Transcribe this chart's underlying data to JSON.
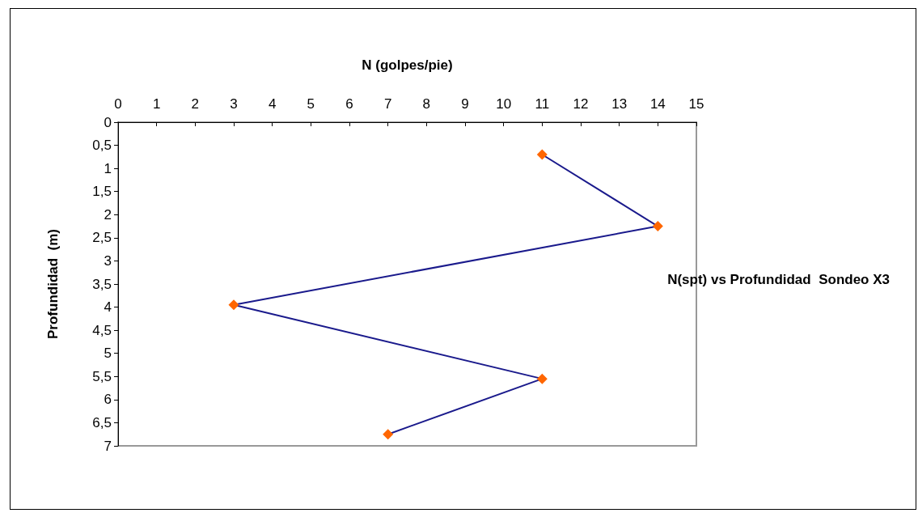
{
  "chart_data": {
    "type": "line",
    "title": "N(spt) vs Profundidad  Sondeo X3",
    "xlabel": "N (golpes/pie)",
    "ylabel": "Profundidad  (m)",
    "x": [
      11,
      14,
      3,
      11,
      7
    ],
    "series": [
      {
        "color": "#1a1a8c",
        "colors": [
          "#ff6600",
          "#ff6600",
          "#ff6600",
          "#ff6600",
          "#ff6600"
        ],
        "values": [
          0.7,
          2.25,
          3.95,
          5.55,
          6.75
        ]
      }
    ],
    "xlim": [
      0,
      15
    ],
    "xticks": [
      0,
      1,
      2,
      3,
      4,
      5,
      6,
      7,
      8,
      9,
      10,
      11,
      12,
      13,
      14,
      15
    ],
    "ylim": [
      7,
      0
    ],
    "yticks": [
      0,
      {
        "value": 0.5,
        "label": "0,5"
      },
      1,
      {
        "value": 1.5,
        "label": "1,5"
      },
      2,
      {
        "value": 2.5,
        "label": "2,5"
      },
      3,
      {
        "value": 3.5,
        "label": "3,5"
      },
      4,
      {
        "value": 4.5,
        "label": "4,5"
      },
      5,
      {
        "value": 5.5,
        "label": "5,5"
      },
      6,
      {
        "value": 6.5,
        "label": "6,5"
      },
      7
    ],
    "grid": false,
    "marker": "diamond",
    "line_style": "solid"
  }
}
